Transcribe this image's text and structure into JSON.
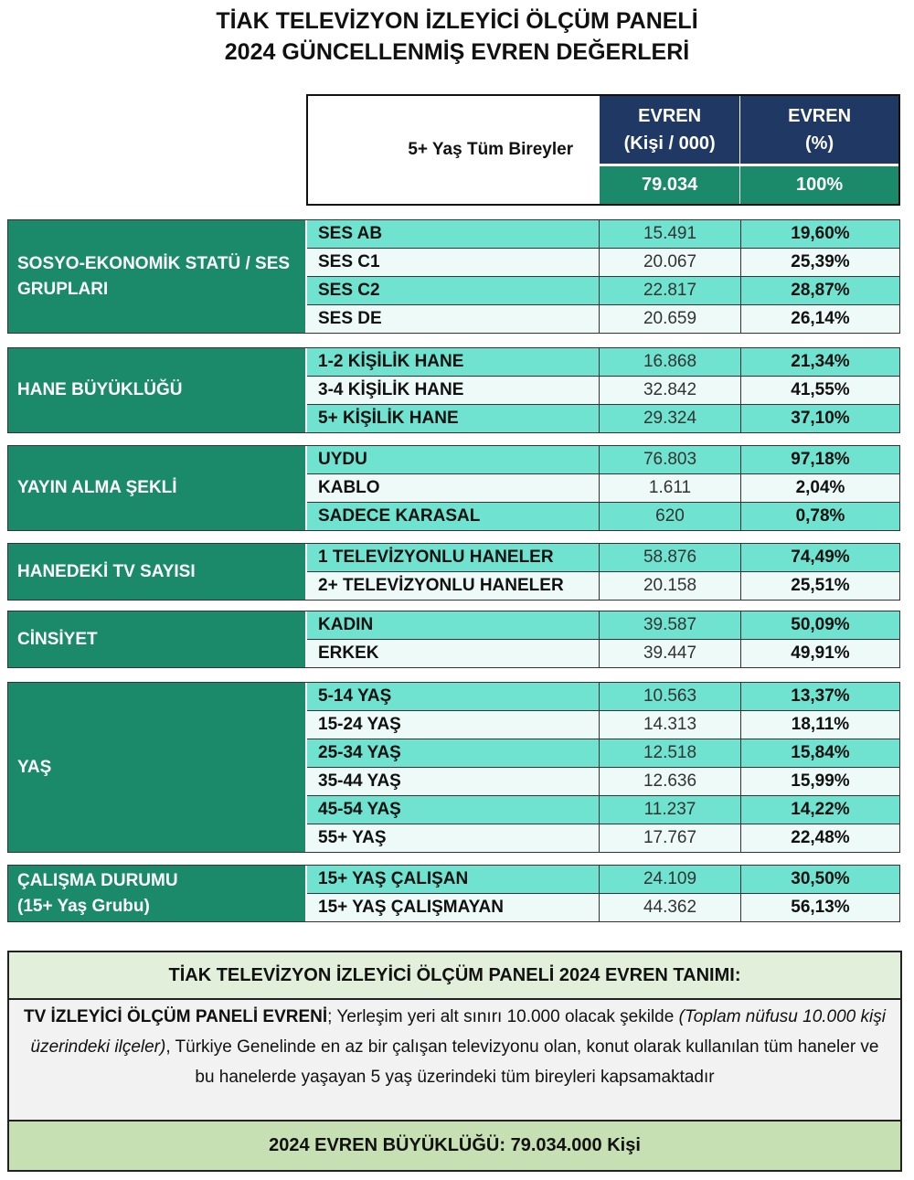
{
  "title": {
    "line1": "TİAK TELEVİZYON İZLEYİCİ ÖLÇÜM PANELİ",
    "line2": "2024 GÜNCELLENMİŞ EVREN DEĞERLERİ"
  },
  "header": {
    "label": "5+ Yaş Tüm Bireyler",
    "col1_line1": "EVREN",
    "col1_line2": "(Kişi / 000)",
    "col2_line1": "EVREN",
    "col2_line2": "(%)",
    "total_value": "79.034",
    "total_pct": "100%"
  },
  "sections": [
    {
      "group": "SOSYO-EKONOMİK STATÜ / SES GRUPLARI",
      "rows": [
        [
          "SES AB",
          "15.491",
          "19,60%"
        ],
        [
          "SES C1",
          "20.067",
          "25,39%"
        ],
        [
          "SES C2",
          "22.817",
          "28,87%"
        ],
        [
          "SES DE",
          "20.659",
          "26,14%"
        ]
      ]
    },
    {
      "group": "HANE BÜYÜKLÜĞÜ",
      "rows": [
        [
          "1-2 KİŞİLİK HANE",
          "16.868",
          "21,34%"
        ],
        [
          "3-4 KİŞİLİK HANE",
          "32.842",
          "41,55%"
        ],
        [
          "5+ KİŞİLİK HANE",
          "29.324",
          "37,10%"
        ]
      ]
    },
    {
      "group": "YAYIN ALMA ŞEKLİ",
      "rows": [
        [
          "UYDU",
          "76.803",
          "97,18%"
        ],
        [
          "KABLO",
          "1.611",
          "2,04%"
        ],
        [
          "SADECE KARASAL",
          "620",
          "0,78%"
        ]
      ]
    },
    {
      "group": "HANEDEKİ TV SAYISI",
      "rows": [
        [
          "1 TELEVİZYONLU HANELER",
          "58.876",
          "74,49%"
        ],
        [
          "2+ TELEVİZYONLU HANELER",
          "20.158",
          "25,51%"
        ]
      ]
    },
    {
      "group": "CİNSİYET",
      "rows": [
        [
          "KADIN",
          "39.587",
          "50,09%"
        ],
        [
          "ERKEK",
          "39.447",
          "49,91%"
        ]
      ]
    },
    {
      "group": "YAŞ",
      "rows": [
        [
          "5-14 YAŞ",
          "10.563",
          "13,37%"
        ],
        [
          "15-24 YAŞ",
          "14.313",
          "18,11%"
        ],
        [
          "25-34 YAŞ",
          "12.518",
          "15,84%"
        ],
        [
          "35-44 YAŞ",
          "12.636",
          "15,99%"
        ],
        [
          "45-54 YAŞ",
          "11.237",
          "14,22%"
        ],
        [
          "55+ YAŞ",
          "17.767",
          "22,48%"
        ]
      ]
    },
    {
      "group": "ÇALIŞMA DURUMU\n(15+ Yaş Grubu)",
      "rows": [
        [
          "15+ YAŞ ÇALIŞAN",
          "24.109",
          "30,50%"
        ],
        [
          "15+ YAŞ ÇALIŞMAYAN",
          "44.362",
          "56,13%"
        ]
      ]
    }
  ],
  "footer": {
    "title": "TİAK TELEVİZYON İZLEYİCİ ÖLÇÜM PANELİ 2024 EVREN TANIMI:",
    "body_bold": "TV İZLEYİCİ ÖLÇÜM PANELİ EVRENİ",
    "body_1": "; Yerleşim yeri alt sınırı 10.000 olacak şekilde ",
    "body_italic": "(Toplam nüfusu 10.000 kişi üzerindeki ilçeler)",
    "body_2": ", Türkiye Genelinde en az bir çalışan televizyonu olan, konut olarak kullanılan tüm haneler ve bu hanelerde yaşayan 5 yaş üzerindeki tüm bireyleri kapsamaktadır",
    "summary": "2024 EVREN BÜYÜKLÜĞÜ: 79.034.000 Kişi"
  },
  "colors": {
    "navy": "#1f3864",
    "teal": "#1a8a6a",
    "light_teal": "#6fe3cf",
    "light_green": "#e2efda",
    "green": "#c6e0b4"
  }
}
